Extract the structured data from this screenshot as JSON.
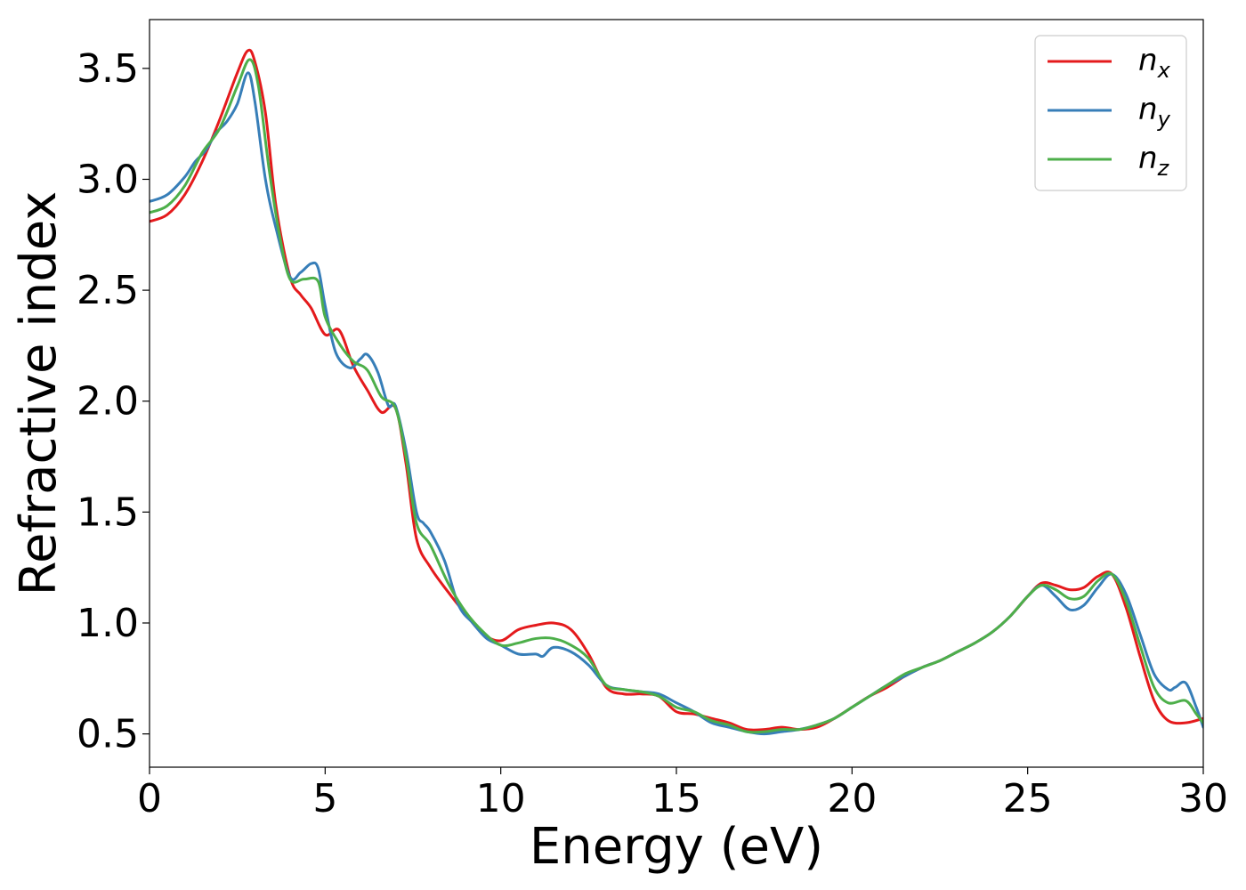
{
  "chart_data": {
    "type": "line",
    "title": "",
    "xlabel": "Energy (eV)",
    "ylabel": "Refractive index",
    "xlim": [
      0,
      30
    ],
    "ylim": [
      0.35,
      3.72
    ],
    "xticks": [
      0,
      5,
      10,
      15,
      20,
      25,
      30
    ],
    "xtick_labels": [
      "0",
      "5",
      "10",
      "15",
      "20",
      "25",
      "30"
    ],
    "yticks": [
      0.5,
      1.0,
      1.5,
      2.0,
      2.5,
      3.0,
      3.5
    ],
    "ytick_labels": [
      "0.5",
      "1.0",
      "1.5",
      "2.0",
      "2.5",
      "3.0",
      "3.5"
    ],
    "grid": false,
    "legend_position": "top-right",
    "series": [
      {
        "name": "n_x",
        "label_main": "n",
        "label_sub": "x",
        "color": "#e41a1c",
        "x": [
          0,
          0.5,
          1.0,
          1.5,
          2.0,
          2.5,
          2.8,
          3.0,
          3.3,
          3.6,
          4.0,
          4.3,
          4.6,
          5.0,
          5.4,
          5.8,
          6.2,
          6.6,
          7.0,
          7.3,
          7.6,
          8.0,
          8.5,
          9.0,
          9.5,
          10.0,
          10.5,
          11.0,
          11.5,
          12.0,
          12.5,
          13.0,
          13.5,
          14.0,
          14.5,
          15.0,
          15.5,
          16.0,
          16.5,
          17.0,
          17.5,
          18.0,
          18.5,
          19.0,
          19.5,
          20.0,
          20.5,
          21.0,
          21.5,
          22.0,
          22.5,
          23.0,
          23.5,
          24.0,
          24.5,
          25.0,
          25.4,
          25.8,
          26.2,
          26.6,
          27.0,
          27.4,
          27.8,
          28.2,
          28.6,
          29.0,
          29.5,
          30.0
        ],
        "values": [
          2.81,
          2.84,
          2.93,
          3.08,
          3.27,
          3.48,
          3.58,
          3.53,
          3.3,
          2.88,
          2.56,
          2.48,
          2.42,
          2.3,
          2.32,
          2.16,
          2.05,
          1.95,
          1.97,
          1.72,
          1.38,
          1.25,
          1.14,
          1.04,
          0.95,
          0.92,
          0.97,
          0.99,
          1.0,
          0.97,
          0.86,
          0.71,
          0.68,
          0.68,
          0.67,
          0.6,
          0.59,
          0.57,
          0.55,
          0.52,
          0.52,
          0.53,
          0.52,
          0.53,
          0.57,
          0.62,
          0.67,
          0.71,
          0.76,
          0.8,
          0.83,
          0.87,
          0.91,
          0.96,
          1.03,
          1.12,
          1.18,
          1.17,
          1.15,
          1.16,
          1.21,
          1.22,
          1.07,
          0.85,
          0.65,
          0.56,
          0.55,
          0.57
        ]
      },
      {
        "name": "n_y",
        "label_main": "n",
        "label_sub": "y",
        "color": "#377eb8",
        "x": [
          0,
          0.5,
          1.0,
          1.3,
          1.6,
          1.9,
          2.2,
          2.5,
          2.8,
          3.0,
          3.3,
          3.6,
          4.0,
          4.3,
          4.6,
          4.8,
          5.0,
          5.3,
          5.7,
          6.0,
          6.2,
          6.5,
          6.8,
          7.0,
          7.3,
          7.6,
          7.8,
          8.0,
          8.4,
          8.8,
          9.2,
          9.6,
          10.0,
          10.5,
          11.0,
          11.2,
          11.5,
          12.0,
          12.5,
          13.0,
          13.5,
          14.0,
          14.5,
          15.0,
          15.5,
          16.0,
          16.5,
          17.0,
          17.5,
          18.0,
          18.5,
          19.0,
          19.5,
          20.0,
          20.5,
          21.0,
          21.5,
          22.0,
          22.5,
          23.0,
          23.5,
          24.0,
          24.5,
          25.0,
          25.4,
          25.8,
          26.2,
          26.6,
          27.0,
          27.4,
          27.8,
          28.2,
          28.6,
          29.0,
          29.2,
          29.5,
          29.8,
          30.0
        ],
        "values": [
          2.9,
          2.93,
          3.01,
          3.08,
          3.13,
          3.21,
          3.26,
          3.34,
          3.48,
          3.35,
          3.0,
          2.78,
          2.56,
          2.58,
          2.62,
          2.6,
          2.43,
          2.22,
          2.15,
          2.19,
          2.21,
          2.13,
          1.98,
          1.98,
          1.78,
          1.5,
          1.45,
          1.41,
          1.28,
          1.08,
          1.0,
          0.93,
          0.9,
          0.86,
          0.86,
          0.85,
          0.89,
          0.87,
          0.81,
          0.72,
          0.7,
          0.69,
          0.68,
          0.64,
          0.6,
          0.55,
          0.53,
          0.51,
          0.5,
          0.51,
          0.52,
          0.54,
          0.57,
          0.62,
          0.67,
          0.72,
          0.76,
          0.8,
          0.83,
          0.87,
          0.91,
          0.96,
          1.03,
          1.12,
          1.17,
          1.12,
          1.06,
          1.08,
          1.16,
          1.22,
          1.13,
          0.95,
          0.77,
          0.7,
          0.71,
          0.73,
          0.62,
          0.53
        ]
      },
      {
        "name": "n_z",
        "label_main": "n",
        "label_sub": "z",
        "color": "#4daf4a",
        "x": [
          0,
          0.5,
          1.0,
          1.5,
          2.0,
          2.5,
          2.85,
          3.1,
          3.4,
          3.7,
          4.0,
          4.4,
          4.8,
          5.0,
          5.4,
          5.8,
          6.2,
          6.6,
          7.0,
          7.3,
          7.6,
          8.0,
          8.5,
          9.0,
          9.5,
          10.0,
          10.5,
          11.0,
          11.5,
          12.0,
          12.5,
          13.0,
          13.5,
          14.0,
          14.5,
          15.0,
          15.5,
          16.0,
          16.5,
          17.0,
          17.5,
          18.0,
          18.5,
          19.0,
          19.5,
          20.0,
          20.5,
          21.0,
          21.5,
          22.0,
          22.5,
          23.0,
          23.5,
          24.0,
          24.5,
          25.0,
          25.4,
          25.8,
          26.2,
          26.6,
          27.0,
          27.4,
          27.8,
          28.2,
          28.6,
          29.0,
          29.5,
          29.8,
          30.0
        ],
        "values": [
          2.85,
          2.88,
          2.97,
          3.12,
          3.23,
          3.42,
          3.54,
          3.42,
          3.05,
          2.75,
          2.55,
          2.55,
          2.54,
          2.38,
          2.26,
          2.18,
          2.14,
          2.02,
          1.97,
          1.75,
          1.45,
          1.35,
          1.18,
          1.05,
          0.96,
          0.9,
          0.91,
          0.93,
          0.93,
          0.9,
          0.84,
          0.72,
          0.7,
          0.69,
          0.67,
          0.62,
          0.6,
          0.56,
          0.54,
          0.51,
          0.51,
          0.52,
          0.52,
          0.54,
          0.57,
          0.62,
          0.67,
          0.72,
          0.77,
          0.8,
          0.83,
          0.87,
          0.91,
          0.96,
          1.03,
          1.12,
          1.17,
          1.15,
          1.11,
          1.12,
          1.19,
          1.22,
          1.1,
          0.9,
          0.71,
          0.64,
          0.65,
          0.59,
          0.55
        ]
      }
    ]
  }
}
